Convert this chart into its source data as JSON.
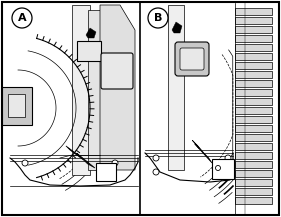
{
  "figsize": [
    2.81,
    2.17
  ],
  "dpi": 100,
  "bg_color": "#ffffff",
  "border_color": "#000000",
  "line_color": "#000000",
  "label_A": "A",
  "label_B": "B",
  "gray_light": "#e8e8e8",
  "gray_mid": "#c8c8c8",
  "gray_dark": "#888888",
  "black": "#000000",
  "white": "#ffffff"
}
